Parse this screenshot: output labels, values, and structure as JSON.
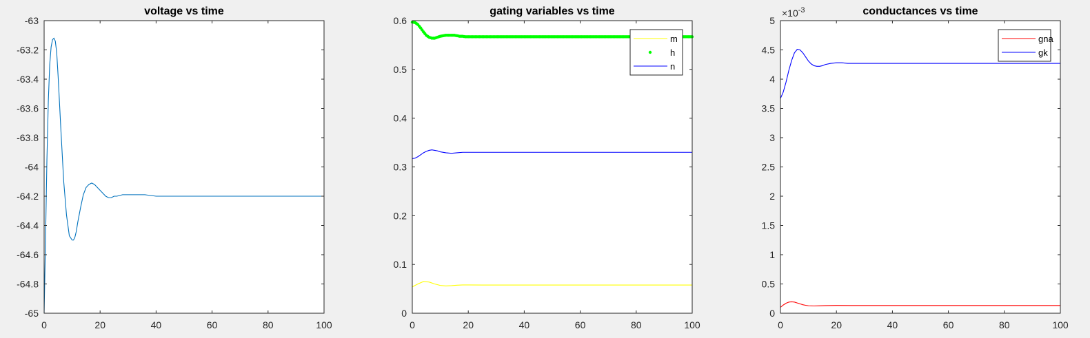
{
  "chart_data": [
    {
      "type": "line",
      "title": "voltage vs time",
      "xlim": [
        0,
        100
      ],
      "ylim": [
        -65,
        -63
      ],
      "xticks": [
        "0",
        "20",
        "40",
        "60",
        "80",
        "100"
      ],
      "yticks": [
        "-63",
        "-63.2",
        "-63.4",
        "-63.6",
        "-63.8",
        "-64",
        "-64.2",
        "-64.4",
        "-64.6",
        "-64.8",
        "-65"
      ],
      "grid": false,
      "series": [
        {
          "color": "#0072BD",
          "x": [
            0,
            0.5,
            1,
            1.5,
            2,
            2.5,
            3,
            3.5,
            4,
            4.5,
            5,
            6,
            7,
            8,
            9,
            10,
            10.5,
            11,
            11.5,
            12,
            13,
            14,
            15,
            16,
            17,
            18,
            19,
            20,
            21,
            22,
            23,
            24,
            25,
            26,
            28,
            30,
            32,
            34,
            36,
            40,
            50,
            60,
            70,
            80,
            90,
            100
          ],
          "y": [
            -65.0,
            -64.5,
            -63.95,
            -63.55,
            -63.3,
            -63.18,
            -63.13,
            -63.12,
            -63.14,
            -63.22,
            -63.38,
            -63.75,
            -64.1,
            -64.33,
            -64.47,
            -64.5,
            -64.5,
            -64.48,
            -64.44,
            -64.38,
            -64.28,
            -64.19,
            -64.14,
            -64.12,
            -64.11,
            -64.12,
            -64.14,
            -64.16,
            -64.18,
            -64.2,
            -64.21,
            -64.21,
            -64.2,
            -64.2,
            -64.19,
            -64.19,
            -64.19,
            -64.19,
            -64.19,
            -64.2,
            -64.2,
            -64.2,
            -64.2,
            -64.2,
            -64.2,
            -64.2
          ]
        }
      ]
    },
    {
      "type": "line",
      "title": "gating variables vs time",
      "xlim": [
        0,
        100
      ],
      "ylim": [
        0,
        0.6
      ],
      "xticks": [
        "0",
        "20",
        "40",
        "60",
        "80",
        "100"
      ],
      "yticks": [
        "0.6",
        "0.5",
        "0.4",
        "0.3",
        "0.2",
        "0.1",
        "0"
      ],
      "grid": false,
      "legend": {
        "placement": "top-right",
        "entries": [
          "m",
          "h",
          "n"
        ]
      },
      "series": [
        {
          "name": "m",
          "color": "#ffff00",
          "style": "line",
          "x": [
            0,
            2,
            4,
            6,
            8,
            10,
            12,
            14,
            16,
            18,
            20,
            25,
            30,
            40,
            60,
            80,
            100
          ],
          "y": [
            0.054,
            0.06,
            0.065,
            0.064,
            0.06,
            0.057,
            0.056,
            0.0565,
            0.0575,
            0.058,
            0.058,
            0.0578,
            0.0578,
            0.0578,
            0.0578,
            0.0578,
            0.0578
          ]
        },
        {
          "name": "h",
          "color": "#00ff00",
          "style": "dots",
          "x": [
            0,
            1,
            2,
            3,
            4,
            5,
            6,
            7,
            8,
            9,
            10,
            11,
            12,
            13,
            14,
            15,
            16,
            17,
            18,
            19,
            20,
            22,
            24,
            26,
            28,
            30,
            35,
            40,
            50,
            60,
            70,
            80,
            90,
            100
          ],
          "y": [
            0.597,
            0.596,
            0.592,
            0.585,
            0.577,
            0.57,
            0.566,
            0.564,
            0.564,
            0.566,
            0.568,
            0.569,
            0.57,
            0.57,
            0.57,
            0.57,
            0.569,
            0.568,
            0.568,
            0.567,
            0.567,
            0.567,
            0.567,
            0.567,
            0.567,
            0.567,
            0.567,
            0.567,
            0.567,
            0.567,
            0.567,
            0.567,
            0.567,
            0.567
          ]
        },
        {
          "name": "n",
          "color": "#0000ff",
          "style": "line",
          "x": [
            0,
            1,
            2,
            3,
            4,
            5,
            6,
            7,
            8,
            9,
            10,
            12,
            14,
            16,
            18,
            20,
            25,
            30,
            40,
            60,
            80,
            100
          ],
          "y": [
            0.317,
            0.318,
            0.321,
            0.325,
            0.329,
            0.332,
            0.334,
            0.335,
            0.334,
            0.333,
            0.331,
            0.329,
            0.328,
            0.329,
            0.33,
            0.33,
            0.33,
            0.33,
            0.33,
            0.33,
            0.33,
            0.33
          ]
        }
      ]
    },
    {
      "type": "line",
      "title": "conductances vs time",
      "xlim": [
        0,
        100
      ],
      "ylim": [
        0,
        5
      ],
      "y_exponent_label": "×10-3",
      "xticks": [
        "0",
        "20",
        "40",
        "60",
        "80",
        "100"
      ],
      "yticks": [
        "5",
        "4.5",
        "4",
        "3.5",
        "3",
        "2.5",
        "2",
        "1.5",
        "1",
        "0.5",
        "0"
      ],
      "grid": false,
      "legend": {
        "placement": "top-right",
        "entries": [
          "gna",
          "gk"
        ]
      },
      "series": [
        {
          "name": "gna",
          "color": "#ff0000",
          "style": "line",
          "x": [
            0,
            1,
            2,
            3,
            4,
            5,
            6,
            7,
            8,
            9,
            10,
            12,
            14,
            16,
            18,
            20,
            25,
            30,
            40,
            60,
            80,
            100
          ],
          "y": [
            0.1,
            0.14,
            0.17,
            0.19,
            0.195,
            0.19,
            0.175,
            0.16,
            0.145,
            0.135,
            0.128,
            0.125,
            0.127,
            0.13,
            0.132,
            0.133,
            0.132,
            0.132,
            0.132,
            0.132,
            0.132,
            0.132
          ]
        },
        {
          "name": "gk",
          "color": "#0000ff",
          "style": "line",
          "x": [
            0,
            1,
            2,
            3,
            4,
            5,
            6,
            7,
            8,
            9,
            10,
            11,
            12,
            13,
            14,
            15,
            16,
            18,
            20,
            22,
            24,
            26,
            28,
            30,
            35,
            40,
            50,
            60,
            70,
            80,
            90,
            100
          ],
          "y": [
            3.67,
            3.78,
            3.95,
            4.15,
            4.32,
            4.45,
            4.51,
            4.5,
            4.45,
            4.38,
            4.31,
            4.26,
            4.23,
            4.22,
            4.22,
            4.23,
            4.25,
            4.27,
            4.28,
            4.28,
            4.27,
            4.27,
            4.27,
            4.27,
            4.27,
            4.27,
            4.27,
            4.27,
            4.27,
            4.27,
            4.27,
            4.27
          ]
        }
      ]
    }
  ]
}
